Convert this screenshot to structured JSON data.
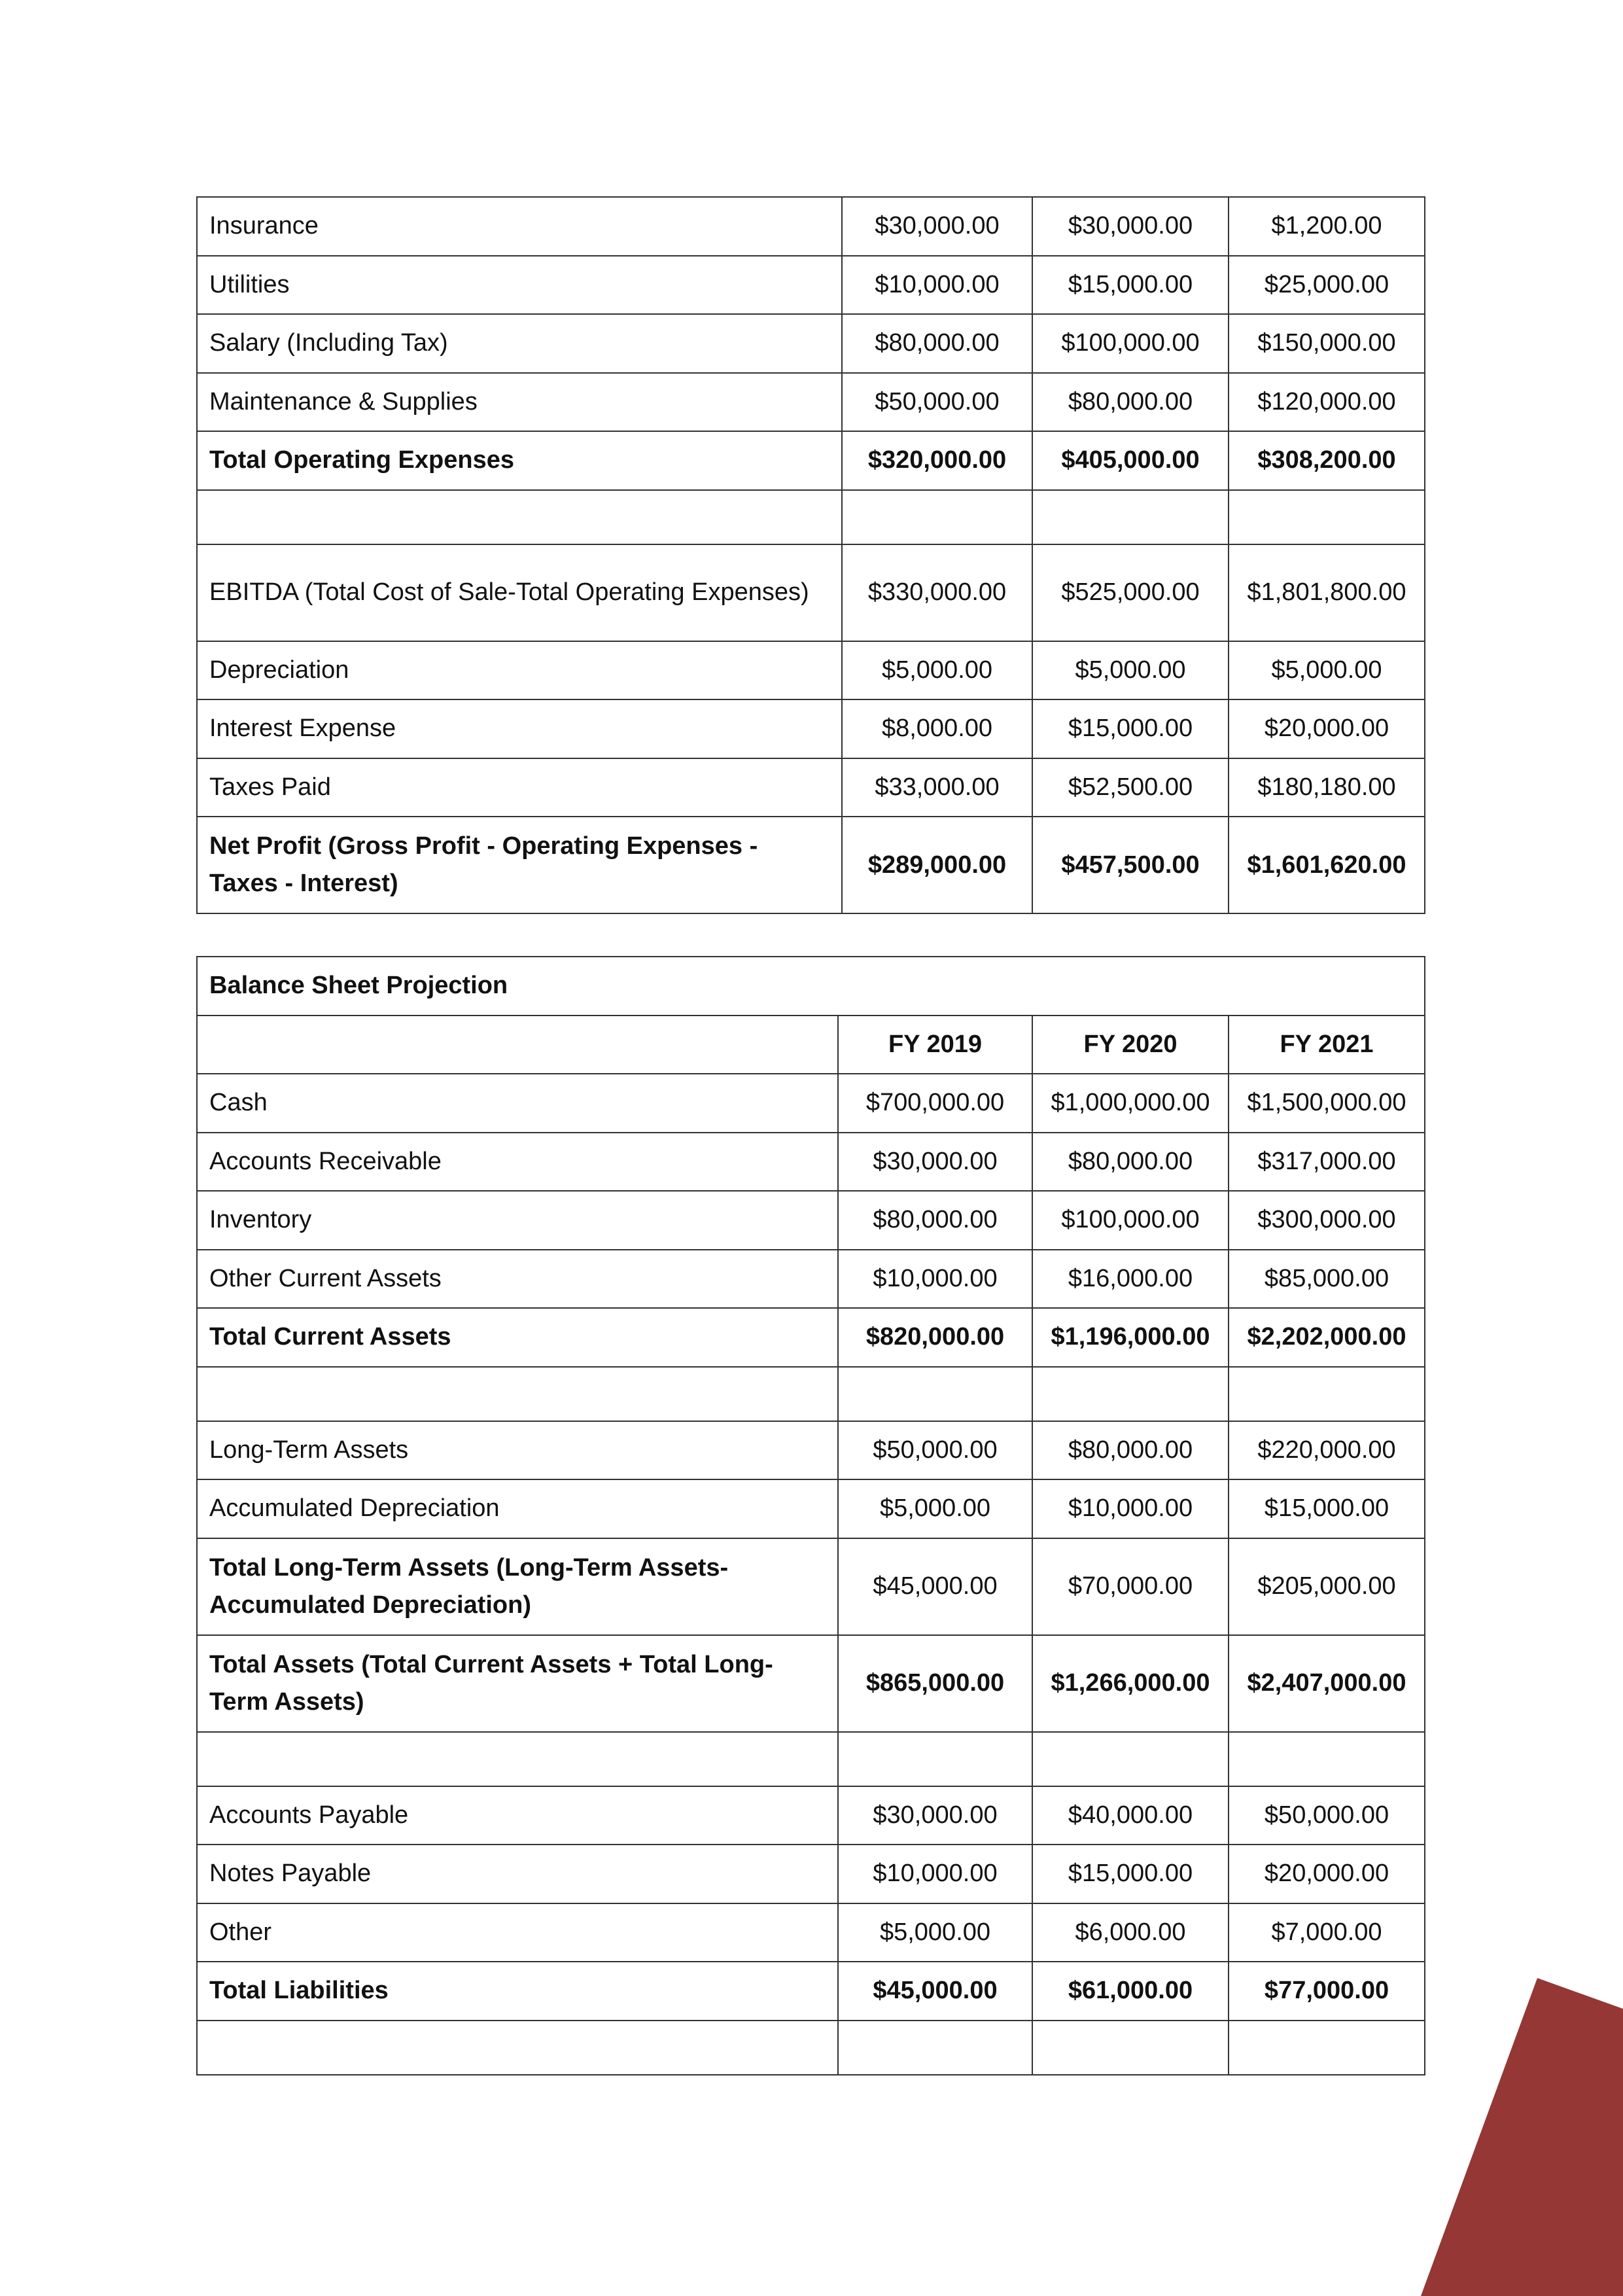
{
  "income_table": {
    "rows": [
      {
        "label": "Insurance",
        "values": [
          "$30,000.00",
          "$30,000.00",
          "$1,200.00"
        ]
      },
      {
        "label": "Utilities",
        "values": [
          "$10,000.00",
          "$15,000.00",
          "$25,000.00"
        ]
      },
      {
        "label": "Salary (Including Tax)",
        "values": [
          "$80,000.00",
          "$100,000.00",
          "$150,000.00"
        ]
      },
      {
        "label": "Maintenance & Supplies",
        "values": [
          "$50,000.00",
          "$80,000.00",
          "$120,000.00"
        ]
      },
      {
        "label": "Total Operating Expenses",
        "values": [
          "$320,000.00",
          "$405,000.00",
          "$308,200.00"
        ],
        "bold": true
      },
      {
        "label": "",
        "values": [
          "",
          "",
          ""
        ],
        "empty": true
      },
      {
        "label": "EBITDA (Total Cost of Sale-Total Operating Expenses)",
        "values": [
          "$330,000.00",
          "$525,000.00",
          "$1,801,800.00"
        ],
        "tall": true
      },
      {
        "label": "Depreciation",
        "values": [
          "$5,000.00",
          "$5,000.00",
          "$5,000.00"
        ]
      },
      {
        "label": "Interest Expense",
        "values": [
          "$8,000.00",
          "$15,000.00",
          "$20,000.00"
        ]
      },
      {
        "label": "Taxes Paid",
        "values": [
          "$33,000.00",
          "$52,500.00",
          "$180,180.00"
        ]
      },
      {
        "label": "Net Profit (Gross Profit - Operating Expenses - Taxes - Interest)",
        "values": [
          "$289,000.00",
          "$457,500.00",
          "$1,601,620.00"
        ],
        "bold": true,
        "tall": true
      }
    ]
  },
  "balance_table": {
    "title": "Balance Sheet Projection",
    "headers": [
      "",
      "FY 2019",
      "FY 2020",
      "FY 2021"
    ],
    "rows": [
      {
        "label": "Cash",
        "values": [
          "$700,000.00",
          "$1,000,000.00",
          "$1,500,000.00"
        ]
      },
      {
        "label": "Accounts Receivable",
        "values": [
          "$30,000.00",
          "$80,000.00",
          "$317,000.00"
        ]
      },
      {
        "label": "Inventory",
        "values": [
          "$80,000.00",
          "$100,000.00",
          "$300,000.00"
        ]
      },
      {
        "label": "Other Current Assets",
        "values": [
          "$10,000.00",
          "$16,000.00",
          "$85,000.00"
        ]
      },
      {
        "label": "Total Current Assets",
        "values": [
          "$820,000.00",
          "$1,196,000.00",
          "$2,202,000.00"
        ],
        "bold": true
      },
      {
        "label": "",
        "values": [
          "",
          "",
          ""
        ],
        "empty": true
      },
      {
        "label": "Long-Term Assets",
        "values": [
          "$50,000.00",
          "$80,000.00",
          "$220,000.00"
        ]
      },
      {
        "label": "Accumulated Depreciation",
        "values": [
          "$5,000.00",
          "$10,000.00",
          "$15,000.00"
        ]
      },
      {
        "label": "Total Long-Term Assets (Long-Term Assets-Accumulated Depreciation)",
        "values": [
          "$45,000.00",
          "$70,000.00",
          "$205,000.00"
        ],
        "bold_label": true,
        "tall": true
      },
      {
        "label": "Total Assets (Total Current Assets + Total Long-Term Assets)",
        "values": [
          "$865,000.00",
          "$1,266,000.00",
          "$2,407,000.00"
        ],
        "bold": true,
        "tall": true
      },
      {
        "label": "",
        "values": [
          "",
          "",
          ""
        ],
        "empty": true
      },
      {
        "label": "Accounts Payable",
        "values": [
          "$30,000.00",
          "$40,000.00",
          "$50,000.00"
        ]
      },
      {
        "label": "Notes Payable",
        "values": [
          "$10,000.00",
          "$15,000.00",
          "$20,000.00"
        ]
      },
      {
        "label": "Other",
        "values": [
          "$5,000.00",
          "$6,000.00",
          "$7,000.00"
        ]
      },
      {
        "label": "Total Liabilities",
        "values": [
          "$45,000.00",
          "$61,000.00",
          "$77,000.00"
        ],
        "bold": true
      },
      {
        "label": "",
        "values": [
          "",
          "",
          ""
        ],
        "empty": true
      }
    ]
  },
  "decoration": {
    "accent_color": "#943735"
  }
}
